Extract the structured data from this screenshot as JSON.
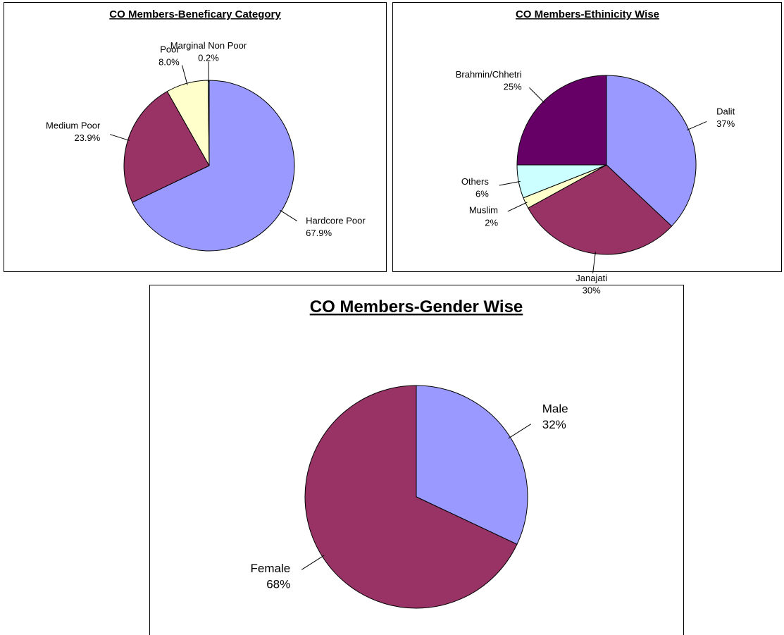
{
  "chart_data": [
    {
      "type": "pie",
      "title": "CO Members-Beneficary Category",
      "categories": [
        "Hardcore Poor",
        "Medium Poor",
        "Poor",
        "Marginal Non Poor"
      ],
      "values": [
        67.9,
        23.9,
        8.0,
        0.2
      ],
      "value_labels": [
        "67.9%",
        "23.9%",
        "8.0%",
        "0.2%"
      ],
      "colors": [
        "#9999ff",
        "#993366",
        "#ffffcc",
        "#ccffff"
      ]
    },
    {
      "type": "pie",
      "title": "CO Members-Ethinicity Wise",
      "categories": [
        "Dalit",
        "Janajati",
        "Muslim",
        "Others",
        "Brahmin/Chhetri"
      ],
      "values": [
        37,
        30,
        2,
        6,
        25
      ],
      "value_labels": [
        "37%",
        "30%",
        "2%",
        "6%",
        "25%"
      ],
      "colors": [
        "#9999ff",
        "#993366",
        "#ffffcc",
        "#ccffff",
        "#660066"
      ]
    },
    {
      "type": "pie",
      "title": "CO Members-Gender Wise",
      "categories": [
        "Male",
        "Female"
      ],
      "values": [
        32,
        68
      ],
      "value_labels": [
        "32%",
        "68%"
      ],
      "colors": [
        "#9999ff",
        "#993366"
      ]
    }
  ]
}
